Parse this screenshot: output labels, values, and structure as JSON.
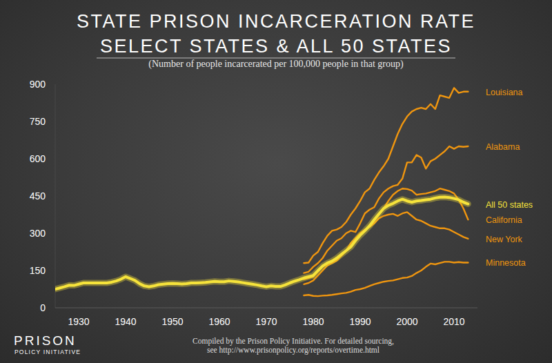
{
  "chart_data": {
    "type": "line",
    "title": [
      "STATE PRISON INCARCERATION RATE",
      "SELECT STATES & ALL 50 STATES"
    ],
    "subtitle": "(Number of people incarcerated per 100,000 people in that group)",
    "source": [
      "Compiled by the Prison Policy Initiative. For detailed sourcing,",
      "see http://www.prisonpolicy.org/reports/overtime.html"
    ],
    "logo": [
      "PRISON",
      "POLICY INITIATIVE"
    ],
    "x": [
      1925,
      1926,
      1927,
      1928,
      1929,
      1930,
      1931,
      1932,
      1933,
      1934,
      1935,
      1936,
      1937,
      1938,
      1939,
      1940,
      1941,
      1942,
      1943,
      1944,
      1945,
      1946,
      1947,
      1948,
      1949,
      1950,
      1951,
      1952,
      1953,
      1954,
      1955,
      1956,
      1957,
      1958,
      1959,
      1960,
      1961,
      1962,
      1963,
      1964,
      1965,
      1966,
      1967,
      1968,
      1969,
      1970,
      1971,
      1972,
      1973,
      1974,
      1975,
      1976,
      1977,
      1978,
      1979,
      1980,
      1981,
      1982,
      1983,
      1984,
      1985,
      1986,
      1987,
      1988,
      1989,
      1990,
      1991,
      1992,
      1993,
      1994,
      1995,
      1996,
      1997,
      1998,
      1999,
      2000,
      2001,
      2002,
      2003,
      2004,
      2005,
      2006,
      2007,
      2008,
      2009,
      2010,
      2011,
      2012,
      2013
    ],
    "xlim": [
      1925,
      2015
    ],
    "xticks": [
      1930,
      1940,
      1950,
      1960,
      1970,
      1980,
      1990,
      2000,
      2010
    ],
    "ylim": [
      0,
      900
    ],
    "yticks": [
      0,
      150,
      300,
      450,
      600,
      750,
      900
    ],
    "grid": false,
    "series": [
      {
        "name": "Louisiana",
        "color": "#f0960f",
        "values": [
          null,
          null,
          null,
          null,
          null,
          null,
          null,
          null,
          null,
          null,
          null,
          null,
          null,
          null,
          null,
          null,
          null,
          null,
          null,
          null,
          null,
          null,
          null,
          null,
          null,
          null,
          null,
          null,
          null,
          null,
          null,
          null,
          null,
          null,
          null,
          null,
          null,
          null,
          null,
          null,
          null,
          null,
          null,
          null,
          null,
          null,
          null,
          null,
          null,
          null,
          null,
          null,
          null,
          180,
          182,
          210,
          225,
          260,
          290,
          310,
          315,
          325,
          345,
          375,
          400,
          430,
          465,
          480,
          515,
          545,
          570,
          600,
          650,
          700,
          740,
          770,
          790,
          800,
          805,
          800,
          820,
          800,
          855,
          850,
          845,
          885,
          865,
          870,
          870
        ]
      },
      {
        "name": "Alabama",
        "color": "#f0960f",
        "values": [
          null,
          null,
          null,
          null,
          null,
          null,
          null,
          null,
          null,
          null,
          null,
          null,
          null,
          null,
          null,
          null,
          null,
          null,
          null,
          null,
          null,
          null,
          null,
          null,
          null,
          null,
          null,
          null,
          null,
          null,
          null,
          null,
          null,
          null,
          null,
          null,
          null,
          null,
          null,
          null,
          null,
          null,
          null,
          null,
          null,
          null,
          null,
          null,
          null,
          null,
          null,
          null,
          null,
          140,
          145,
          165,
          180,
          200,
          230,
          250,
          270,
          280,
          300,
          310,
          305,
          340,
          380,
          395,
          405,
          440,
          465,
          480,
          490,
          495,
          520,
          585,
          585,
          615,
          605,
          560,
          590,
          600,
          615,
          630,
          650,
          640,
          650,
          648,
          650
        ]
      },
      {
        "name": "California",
        "color": "#f0960f",
        "values": [
          null,
          null,
          null,
          null,
          null,
          null,
          null,
          null,
          null,
          null,
          null,
          null,
          null,
          null,
          null,
          null,
          null,
          null,
          null,
          null,
          null,
          null,
          null,
          null,
          null,
          null,
          null,
          null,
          null,
          null,
          null,
          null,
          null,
          null,
          null,
          null,
          null,
          null,
          null,
          null,
          null,
          null,
          null,
          null,
          null,
          null,
          null,
          null,
          null,
          null,
          null,
          null,
          null,
          95,
          100,
          110,
          130,
          150,
          170,
          180,
          190,
          210,
          230,
          260,
          280,
          300,
          310,
          330,
          350,
          375,
          400,
          430,
          455,
          470,
          480,
          478,
          472,
          455,
          458,
          460,
          465,
          470,
          480,
          475,
          470,
          460,
          435,
          400,
          355
        ]
      },
      {
        "name": "New York",
        "color": "#f0960f",
        "values": [
          null,
          null,
          null,
          null,
          null,
          null,
          null,
          null,
          null,
          null,
          null,
          null,
          null,
          null,
          null,
          null,
          null,
          null,
          null,
          null,
          null,
          null,
          null,
          null,
          null,
          null,
          null,
          null,
          null,
          null,
          null,
          null,
          null,
          null,
          null,
          null,
          null,
          null,
          null,
          null,
          null,
          null,
          null,
          null,
          null,
          null,
          null,
          null,
          null,
          null,
          null,
          null,
          null,
          115,
          120,
          125,
          145,
          165,
          180,
          190,
          195,
          210,
          230,
          245,
          280,
          300,
          315,
          325,
          340,
          360,
          370,
          375,
          378,
          370,
          380,
          385,
          370,
          355,
          350,
          340,
          330,
          325,
          320,
          320,
          315,
          305,
          295,
          285,
          278
        ]
      },
      {
        "name": "Minnesota",
        "color": "#f0960f",
        "values": [
          null,
          null,
          null,
          null,
          null,
          null,
          null,
          null,
          null,
          null,
          null,
          null,
          null,
          null,
          null,
          null,
          null,
          null,
          null,
          null,
          null,
          null,
          null,
          null,
          null,
          null,
          null,
          null,
          null,
          null,
          null,
          null,
          null,
          null,
          null,
          null,
          null,
          null,
          null,
          null,
          null,
          null,
          null,
          null,
          null,
          null,
          null,
          null,
          null,
          null,
          null,
          null,
          null,
          50,
          52,
          48,
          47,
          49,
          50,
          52,
          55,
          58,
          60,
          65,
          72,
          75,
          80,
          88,
          95,
          100,
          105,
          108,
          110,
          115,
          120,
          122,
          128,
          140,
          150,
          165,
          178,
          175,
          180,
          185,
          185,
          182,
          184,
          182,
          182
        ]
      },
      {
        "name": "All 50 states",
        "color": "#f6e33b",
        "values": [
          75,
          80,
          85,
          91,
          90,
          95,
          100,
          100,
          100,
          100,
          100,
          100,
          103,
          108,
          115,
          125,
          118,
          110,
          97,
          88,
          85,
          88,
          93,
          95,
          97,
          98,
          97,
          96,
          97,
          100,
          100,
          101,
          102,
          104,
          106,
          105,
          105,
          108,
          106,
          104,
          101,
          98,
          95,
          92,
          88,
          85,
          88,
          86,
          86,
          92,
          100,
          107,
          113,
          120,
          125,
          130,
          150,
          168,
          180,
          188,
          200,
          215,
          230,
          245,
          270,
          292,
          310,
          330,
          355,
          378,
          400,
          412,
          420,
          430,
          437,
          430,
          425,
          430,
          432,
          435,
          437,
          442,
          445,
          446,
          444,
          440,
          435,
          425,
          418
        ]
      }
    ]
  }
}
